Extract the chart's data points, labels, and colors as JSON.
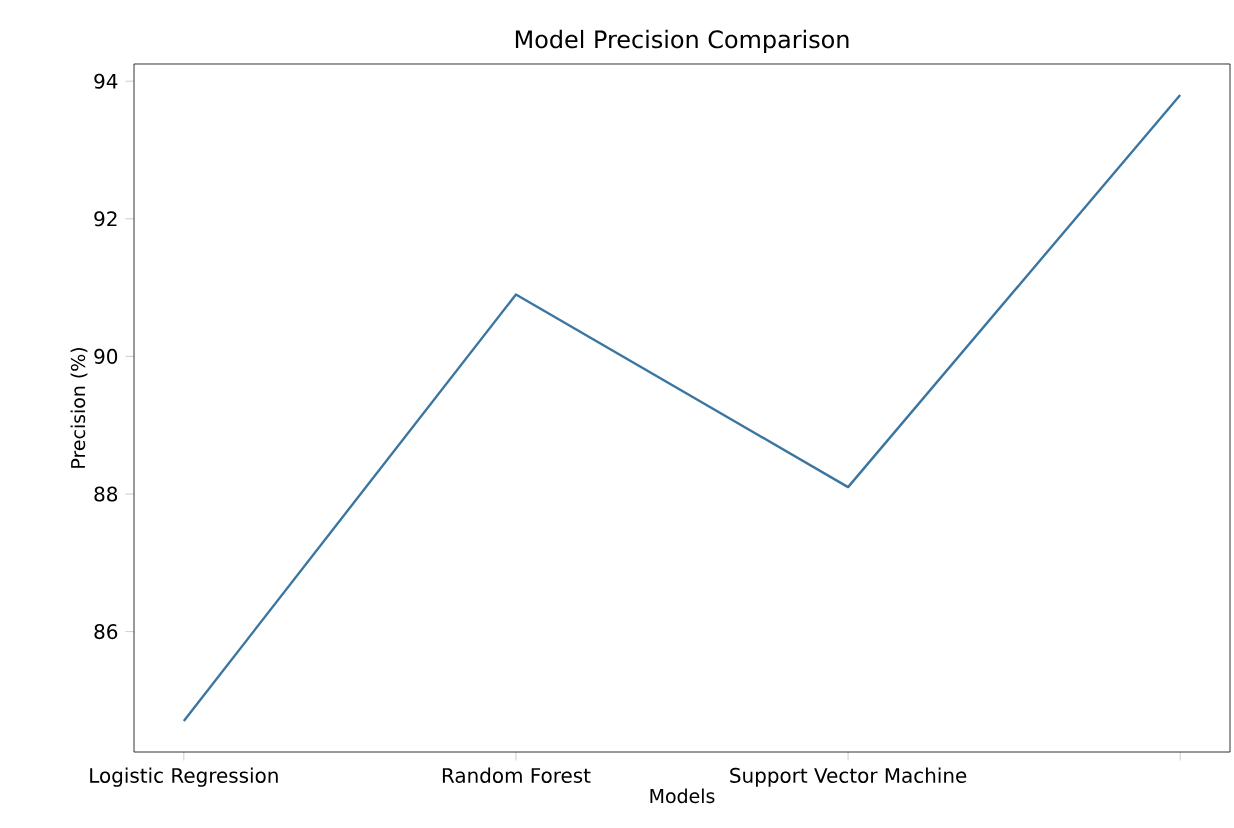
{
  "chart_data": {
    "type": "line",
    "title": "Model Precision Comparison",
    "xlabel": "Models",
    "ylabel": "Precision (%)",
    "categories": [
      "Logistic Regression",
      "Random Forest",
      "Support Vector Machine",
      null
    ],
    "series": [
      {
        "color": "#3b76a0",
        "values": [
          84.7,
          90.9,
          88.1,
          93.8
        ]
      }
    ],
    "ylim": [
      84.25,
      94.25
    ],
    "yticks": [
      86,
      88,
      90,
      92,
      94
    ],
    "marker": "none",
    "line_style": "solid"
  }
}
